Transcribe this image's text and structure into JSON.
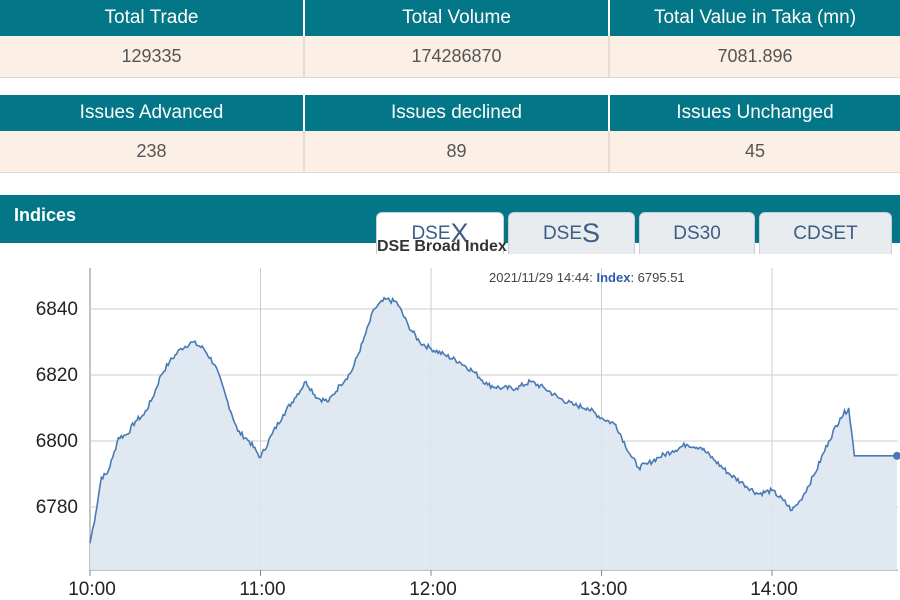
{
  "summary": {
    "headers": [
      "Total Trade",
      "Total Volume",
      "Total Value in Taka (mn)"
    ],
    "values": [
      "129335",
      "174286870",
      "7081.896"
    ]
  },
  "issues": {
    "headers": [
      "Issues Advanced",
      "Issues declined",
      "Issues Unchanged"
    ],
    "values": [
      "238",
      "89",
      "45"
    ]
  },
  "indices": {
    "title": "Indices",
    "tabs": [
      {
        "prefix": "DSE",
        "big": "X",
        "active": true
      },
      {
        "prefix": "DSE",
        "big": "S",
        "active": false
      },
      {
        "prefix": "DS30",
        "big": "",
        "active": false
      },
      {
        "prefix": "CDSET",
        "big": "",
        "active": false
      }
    ]
  },
  "colors": {
    "header_bg": "#037687",
    "value_bg": "#fbefe6",
    "line": "#4a7ab5",
    "fill": "#dde5ef"
  },
  "chart_data": {
    "type": "area",
    "title": "DSE Broad Index",
    "tooltip": {
      "time": "2021/11/29 14:44:",
      "label": "Index",
      "value": "6795.51"
    },
    "xlabel": "",
    "ylabel": "",
    "x_ticks": [
      "10:00",
      "11:00",
      "12:00",
      "13:00",
      "14:00"
    ],
    "y_ticks": [
      "6780",
      "6800",
      "6820",
      "6840"
    ],
    "xlim": [
      "10:00",
      "14:44"
    ],
    "ylim": [
      6768,
      6851
    ],
    "grid": true,
    "points": [
      [
        "10:00",
        6769
      ],
      [
        "10:02",
        6778
      ],
      [
        "10:04",
        6789
      ],
      [
        "10:06",
        6790
      ],
      [
        "10:08",
        6795
      ],
      [
        "10:10",
        6801
      ],
      [
        "10:13",
        6802
      ],
      [
        "10:16",
        6806
      ],
      [
        "10:19",
        6808
      ],
      [
        "10:22",
        6813
      ],
      [
        "10:25",
        6820
      ],
      [
        "10:28",
        6824
      ],
      [
        "10:32",
        6828
      ],
      [
        "10:36",
        6830
      ],
      [
        "10:40",
        6828
      ],
      [
        "10:44",
        6823
      ],
      [
        "10:48",
        6813
      ],
      [
        "10:52",
        6803
      ],
      [
        "10:56",
        6800
      ],
      [
        "11:00",
        6795
      ],
      [
        "11:04",
        6802
      ],
      [
        "11:08",
        6808
      ],
      [
        "11:12",
        6813
      ],
      [
        "11:16",
        6818
      ],
      [
        "11:20",
        6813
      ],
      [
        "11:24",
        6812
      ],
      [
        "11:28",
        6817
      ],
      [
        "11:32",
        6821
      ],
      [
        "11:36",
        6830
      ],
      [
        "11:40",
        6840
      ],
      [
        "11:44",
        6843
      ],
      [
        "11:48",
        6842
      ],
      [
        "11:52",
        6835
      ],
      [
        "11:56",
        6830
      ],
      [
        "12:00",
        6828
      ],
      [
        "12:05",
        6826
      ],
      [
        "12:10",
        6824
      ],
      [
        "12:15",
        6821
      ],
      [
        "12:20",
        6817
      ],
      [
        "12:25",
        6816
      ],
      [
        "12:30",
        6816
      ],
      [
        "12:35",
        6818
      ],
      [
        "12:40",
        6816
      ],
      [
        "12:45",
        6813
      ],
      [
        "12:50",
        6811
      ],
      [
        "12:55",
        6810
      ],
      [
        "13:00",
        6807
      ],
      [
        "13:05",
        6805
      ],
      [
        "13:10",
        6796
      ],
      [
        "13:13",
        6792
      ],
      [
        "13:16",
        6793
      ],
      [
        "13:20",
        6795
      ],
      [
        "13:25",
        6797
      ],
      [
        "13:30",
        6799
      ],
      [
        "13:35",
        6798
      ],
      [
        "13:40",
        6794
      ],
      [
        "13:45",
        6790
      ],
      [
        "13:50",
        6787
      ],
      [
        "13:55",
        6784
      ],
      [
        "14:00",
        6785
      ],
      [
        "14:04",
        6782
      ],
      [
        "14:07",
        6779
      ],
      [
        "14:10",
        6782
      ],
      [
        "14:15",
        6790
      ],
      [
        "14:20",
        6800
      ],
      [
        "14:24",
        6807
      ],
      [
        "14:27",
        6810
      ],
      [
        "14:29",
        6795.51
      ],
      [
        "14:44",
        6795.51
      ]
    ]
  }
}
